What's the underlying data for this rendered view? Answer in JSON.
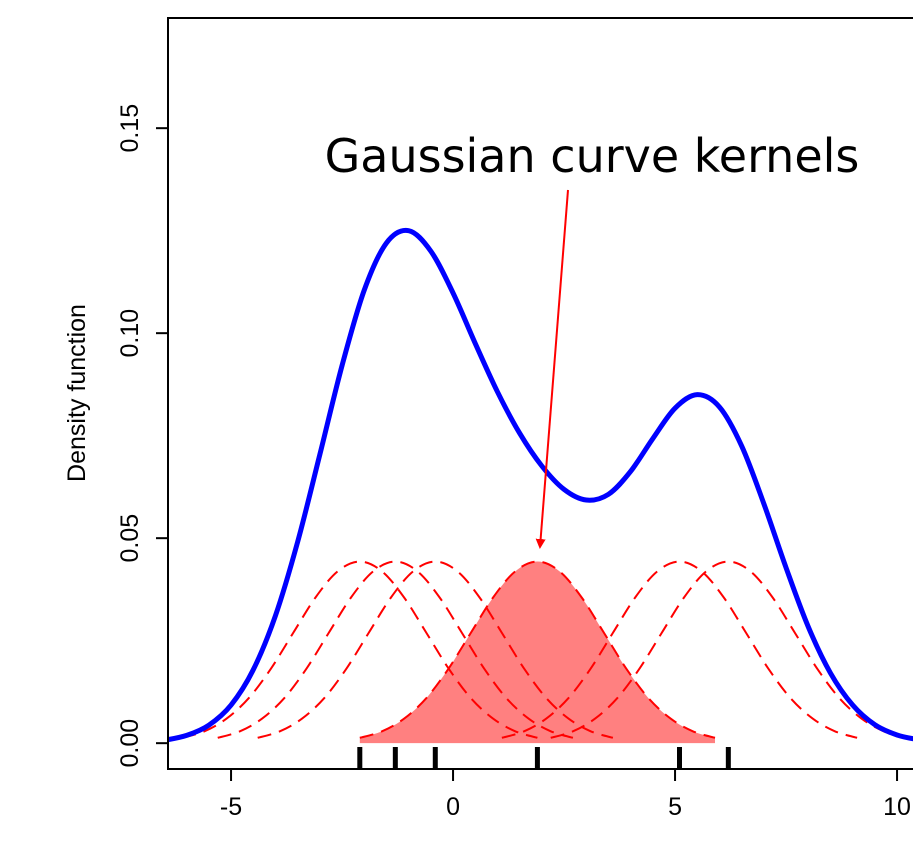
{
  "chart_data": {
    "type": "line",
    "ylabel": "Density function",
    "annotation": "Gaussian curve kernels",
    "xlim": [
      -6.42,
      10.45
    ],
    "ylim": [
      -0.0063,
      0.1768
    ],
    "xticks": [
      -5,
      0,
      5,
      10
    ],
    "yticks": [
      {
        "value": 0,
        "label": "0.00"
      },
      {
        "value": 0.05,
        "label": "0.05"
      },
      {
        "value": 0.1,
        "label": "0.10"
      },
      {
        "value": 0.15,
        "label": "0.15"
      }
    ],
    "rug": [
      -2.1,
      -1.3,
      -0.4,
      1.9,
      5.1,
      6.2
    ],
    "rug_color": "#000000",
    "series": [
      {
        "color": "#0000ff",
        "dash": false,
        "x": [
          -6.5,
          -6,
          -5.5,
          -5,
          -4.5,
          -4,
          -3.5,
          -3,
          -2.5,
          -2,
          -1.5,
          -1,
          -0.5,
          0,
          0.5,
          1,
          1.5,
          2,
          2.5,
          3,
          3.5,
          4,
          4.5,
          5,
          5.5,
          6,
          6.5,
          7,
          7.5,
          8,
          8.5,
          9,
          9.5,
          10,
          10.5
        ],
        "values": [
          0.0007,
          0.0019,
          0.0044,
          0.0093,
          0.0179,
          0.0311,
          0.0491,
          0.0704,
          0.0921,
          0.1105,
          0.122,
          0.125,
          0.12,
          0.1098,
          0.0975,
          0.0857,
          0.0756,
          0.0676,
          0.0619,
          0.0593,
          0.0607,
          0.0663,
          0.0743,
          0.0817,
          0.085,
          0.082,
          0.0725,
          0.0584,
          0.0428,
          0.0284,
          0.0171,
          0.0093,
          0.0045,
          0.002,
          0.0008
        ]
      },
      {
        "color": "#ff0000",
        "dash": true,
        "x": [
          -6.1,
          -5.6,
          -5.1,
          -4.6,
          -4.1,
          -3.6,
          -3.1,
          -2.6,
          -2.1,
          -1.6,
          -1.1,
          -0.6,
          -0.1,
          0.4,
          0.9,
          1.4,
          1.9
        ],
        "values": [
          0.0013,
          0.0029,
          0.006,
          0.011,
          0.0182,
          0.0269,
          0.0355,
          0.0419,
          0.0443,
          0.0419,
          0.0355,
          0.0269,
          0.0182,
          0.011,
          0.006,
          0.0029,
          0.0013
        ]
      },
      {
        "color": "#ff0000",
        "dash": true,
        "x": [
          -5.3,
          -4.8,
          -4.3,
          -3.8,
          -3.3,
          -2.8,
          -2.3,
          -1.8,
          -1.3,
          -0.8,
          -0.3,
          0.2,
          0.7,
          1.2,
          1.7,
          2.2,
          2.7
        ],
        "values": [
          0.0013,
          0.0029,
          0.006,
          0.011,
          0.0182,
          0.0269,
          0.0355,
          0.0419,
          0.0443,
          0.0419,
          0.0355,
          0.0269,
          0.0182,
          0.011,
          0.006,
          0.0029,
          0.0013
        ]
      },
      {
        "color": "#ff0000",
        "dash": true,
        "x": [
          -4.4,
          -3.9,
          -3.4,
          -2.9,
          -2.4,
          -1.9,
          -1.4,
          -0.9,
          -0.4,
          0.1,
          0.6,
          1.1,
          1.6,
          2.1,
          2.6,
          3.1,
          3.6
        ],
        "values": [
          0.0013,
          0.0029,
          0.006,
          0.011,
          0.0182,
          0.0269,
          0.0355,
          0.0419,
          0.0443,
          0.0419,
          0.0355,
          0.0269,
          0.0182,
          0.011,
          0.006,
          0.0029,
          0.0013
        ]
      },
      {
        "color": "#ff0000",
        "dash": true,
        "fill": "#ff8080",
        "x": [
          -2.1,
          -1.6,
          -1.1,
          -0.6,
          -0.1,
          0.4,
          0.9,
          1.4,
          1.9,
          2.4,
          2.9,
          3.4,
          3.9,
          4.4,
          4.9,
          5.4,
          5.9
        ],
        "values": [
          0.0013,
          0.0029,
          0.006,
          0.011,
          0.0182,
          0.0269,
          0.0355,
          0.0419,
          0.0443,
          0.0419,
          0.0355,
          0.0269,
          0.0182,
          0.011,
          0.006,
          0.0029,
          0.0013
        ]
      },
      {
        "color": "#ff0000",
        "dash": true,
        "x": [
          1.1,
          1.6,
          2.1,
          2.6,
          3.1,
          3.6,
          4.1,
          4.6,
          5.1,
          5.6,
          6.1,
          6.6,
          7.1,
          7.6,
          8.1,
          8.6,
          9.1
        ],
        "values": [
          0.0013,
          0.0029,
          0.006,
          0.011,
          0.0182,
          0.0269,
          0.0355,
          0.0419,
          0.0443,
          0.0419,
          0.0355,
          0.0269,
          0.0182,
          0.011,
          0.006,
          0.0029,
          0.0013
        ]
      },
      {
        "color": "#ff0000",
        "dash": true,
        "x": [
          2.2,
          2.7,
          3.2,
          3.7,
          4.2,
          4.7,
          5.2,
          5.7,
          6.2,
          6.7,
          7.2,
          7.7,
          8.2,
          8.7,
          9.2,
          9.7,
          10.2
        ],
        "values": [
          0.0013,
          0.0029,
          0.006,
          0.011,
          0.0182,
          0.0269,
          0.0355,
          0.0419,
          0.0443,
          0.0419,
          0.0355,
          0.0269,
          0.0182,
          0.011,
          0.006,
          0.0029,
          0.0013
        ]
      }
    ]
  }
}
